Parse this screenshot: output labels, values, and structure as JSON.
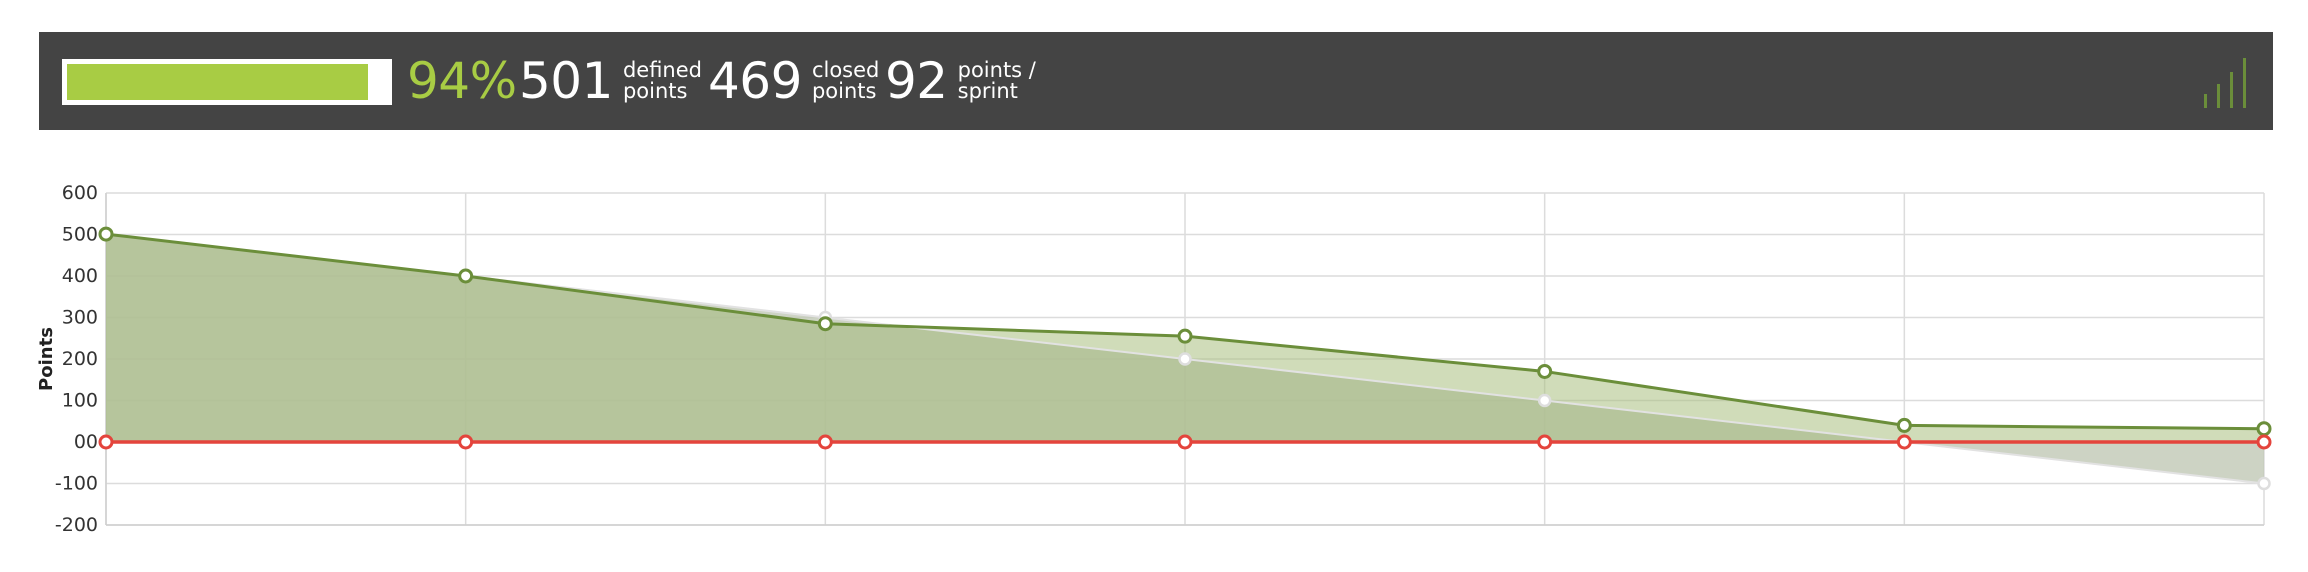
{
  "summary": {
    "progress_fraction": 0.94,
    "percent_text": "94%",
    "defined_value": "501",
    "defined_label_1": "defined",
    "defined_label_2": "points",
    "closed_value": "469",
    "closed_label_1": "closed",
    "closed_label_2": "points",
    "sprint_value": "92",
    "sprint_label_1": "points /",
    "sprint_label_2": "sprint",
    "icon": "signal-bars-icon"
  },
  "colors": {
    "accent": "#a8cc44",
    "bar_bg": "#444444",
    "actual_line": "#6b8e3a",
    "actual_fill": "#a9c07f",
    "ideal_fill": "#d8d8d8",
    "zero_line": "#e4443c"
  },
  "chart_data": {
    "type": "area",
    "ylabel": "Points",
    "ylim": [
      -200,
      600
    ],
    "yticks": [
      "600",
      "500",
      "400",
      "300",
      "200",
      "100",
      "00",
      "-100",
      "-200"
    ],
    "ytick_values": [
      600,
      500,
      400,
      300,
      200,
      100,
      0,
      -100,
      -200
    ],
    "x": [
      0,
      1,
      2,
      3,
      4,
      5,
      6
    ],
    "grid": true,
    "series": [
      {
        "key": "ideal",
        "values": [
          501,
          400,
          300,
          200,
          100,
          0,
          -100
        ]
      },
      {
        "key": "actual",
        "values": [
          501,
          400,
          285,
          255,
          170,
          40,
          32
        ]
      },
      {
        "key": "zero",
        "values": [
          0,
          0,
          0,
          0,
          0,
          0,
          0
        ]
      }
    ]
  }
}
